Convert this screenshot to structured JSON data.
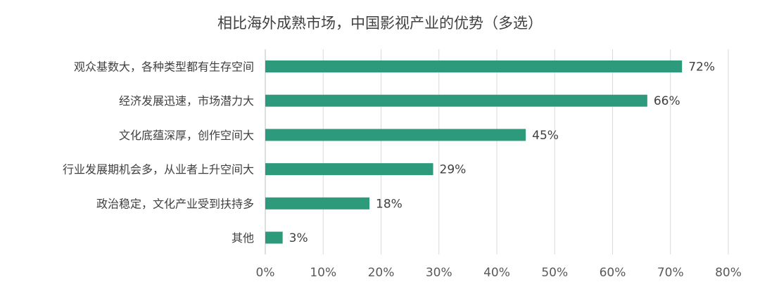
{
  "chart_data": {
    "type": "bar",
    "orientation": "horizontal",
    "title": "相比海外成熟市场，中国影视产业的优势（多选）",
    "categories": [
      "观众基数大，各种类型都有生存空间",
      "经济发展迅速，市场潜力大",
      "文化底蕴深厚，创作空间大",
      "行业发展期机会多，从业者上升空间大",
      "政治稳定，文化产业受到扶持多",
      "其他"
    ],
    "values": [
      72,
      66,
      45,
      29,
      18,
      3
    ],
    "data_labels": [
      "72%",
      "66%",
      "45%",
      "29%",
      "18%",
      "3%"
    ],
    "xlim": [
      0,
      80
    ],
    "x_ticks": [
      0,
      10,
      20,
      30,
      40,
      50,
      60,
      70,
      80
    ],
    "x_tick_labels": [
      "0%",
      "10%",
      "20%",
      "30%",
      "40%",
      "50%",
      "60%",
      "70%",
      "80%"
    ],
    "xlabel": "",
    "ylabel": "",
    "grid": true,
    "legend": "none",
    "bar_color": "#2e9a7c"
  }
}
